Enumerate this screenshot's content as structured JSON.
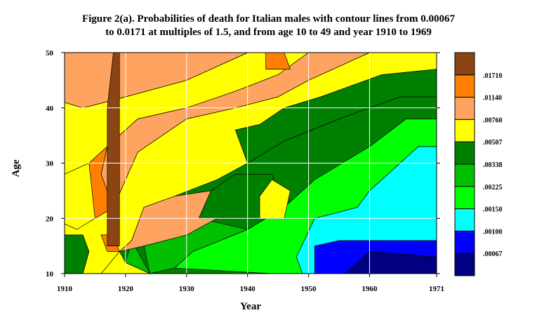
{
  "chart_data": {
    "type": "heatmap",
    "title_lines": [
      "Figure 2(a). Probabilities of death for Italian males with contour lines from 0.00067",
      "to 0.0171 at multiples of 1.5, and from age 10 to 49 and year 1910 to 1969"
    ],
    "xlabel": "Year",
    "ylabel": "Age",
    "xlim": [
      1910,
      1971
    ],
    "ylim": [
      10,
      50
    ],
    "x_ticks": [
      1910,
      1920,
      1930,
      1940,
      1950,
      1960,
      1971
    ],
    "x_tick_labels": [
      "1910",
      "1920",
      "1930",
      "1940",
      "1950",
      "1960",
      "1971"
    ],
    "y_ticks": [
      10,
      20,
      30,
      40,
      50
    ],
    "y_tick_labels": [
      "10",
      "20",
      "30",
      "40",
      "50"
    ],
    "grid": true,
    "legend": {
      "position": "right",
      "labels": [
        ".01710",
        ".01140",
        ".00760",
        ".00507",
        ".00338",
        ".00225",
        ".00150",
        ".00100",
        ".00067"
      ],
      "colors": [
        "#8b4513",
        "#ff8000",
        "#ffa460",
        "#ffff00",
        "#008000",
        "#00c000",
        "#00ff00",
        "#00ffff",
        "#0000ff",
        "#000080"
      ]
    },
    "regions": [
      {
        "level": ".00067",
        "color": "#000080",
        "points": [
          [
            1956,
            10
          ],
          [
            1971,
            10
          ],
          [
            1971,
            13
          ],
          [
            1960,
            14
          ]
        ]
      },
      {
        "level": ".00100",
        "color": "#0000ff",
        "points": [
          [
            1951,
            10
          ],
          [
            1956,
            10
          ],
          [
            1960,
            14
          ],
          [
            1971,
            13
          ],
          [
            1971,
            16
          ],
          [
            1955,
            16
          ],
          [
            1951,
            15
          ]
        ]
      },
      {
        "level": ".00150",
        "color": "#00ffff",
        "points": [
          [
            1949,
            10
          ],
          [
            1951,
            10
          ],
          [
            1951,
            15
          ],
          [
            1955,
            16
          ],
          [
            1971,
            16
          ],
          [
            1971,
            33
          ],
          [
            1968,
            33
          ],
          [
            1960,
            25
          ],
          [
            1958,
            22
          ],
          [
            1951,
            20
          ],
          [
            1948,
            13
          ]
        ]
      },
      {
        "level": ".00225",
        "color": "#00ff00",
        "points": [
          [
            1944,
            10
          ],
          [
            1949,
            10
          ],
          [
            1948,
            13
          ],
          [
            1951,
            20
          ],
          [
            1958,
            22
          ],
          [
            1960,
            25
          ],
          [
            1968,
            33
          ],
          [
            1971,
            33
          ],
          [
            1971,
            38
          ],
          [
            1966,
            38
          ],
          [
            1960,
            33
          ],
          [
            1951,
            27
          ],
          [
            1946,
            22
          ],
          [
            1940,
            18
          ],
          [
            1931,
            14
          ],
          [
            1928,
            11
          ]
        ]
      },
      {
        "level": ".00338",
        "color": "#008000",
        "points": [
          [
            1924,
            10
          ],
          [
            1944,
            10
          ],
          [
            1928,
            11
          ],
          [
            1931,
            14
          ],
          [
            1940,
            18
          ],
          [
            1946,
            22
          ],
          [
            1951,
            27
          ],
          [
            1960,
            33
          ],
          [
            1966,
            38
          ],
          [
            1971,
            38
          ],
          [
            1971,
            42
          ],
          [
            1965,
            42
          ],
          [
            1955,
            38
          ],
          [
            1946,
            34
          ],
          [
            1940,
            30
          ],
          [
            1935,
            27
          ],
          [
            1928,
            24
          ],
          [
            1923,
            22
          ],
          [
            1921,
            16
          ],
          [
            1919,
            14
          ],
          [
            1920,
            12
          ]
        ]
      },
      {
        "level": ".00507",
        "color": "#00c000",
        "points": [
          [
            1920,
            12
          ],
          [
            1922,
            11
          ],
          [
            1924,
            10
          ],
          [
            1921,
            16
          ]
        ]
      },
      {
        "level": ".00507",
        "color": "#008000",
        "points": [
          [
            1910,
            10
          ],
          [
            1913,
            10
          ],
          [
            1914,
            14
          ],
          [
            1913,
            17
          ],
          [
            1910,
            17
          ]
        ]
      },
      {
        "level": ".00507",
        "color": "#00c000",
        "points": [
          [
            1924,
            10
          ],
          [
            1928,
            11
          ],
          [
            1931,
            14
          ],
          [
            1940,
            18
          ],
          [
            1935,
            20
          ],
          [
            1930,
            17
          ],
          [
            1923,
            15
          ]
        ]
      },
      {
        "level": ".00507",
        "color": "#008000",
        "points": [
          [
            1932,
            20
          ],
          [
            1940,
            18
          ],
          [
            1946,
            22
          ],
          [
            1944,
            28
          ],
          [
            1938,
            28
          ],
          [
            1934,
            25
          ]
        ]
      },
      {
        "level": ".00507",
        "color": "#008000",
        "points": [
          [
            1940,
            30
          ],
          [
            1946,
            34
          ],
          [
            1955,
            38
          ],
          [
            1965,
            42
          ],
          [
            1971,
            42
          ],
          [
            1971,
            47
          ],
          [
            1962,
            46
          ],
          [
            1952,
            42
          ],
          [
            1946,
            40
          ],
          [
            1942,
            37
          ],
          [
            1938,
            36
          ]
        ]
      },
      {
        "level": ".00507",
        "color": "#ffff00",
        "points": [
          [
            1910,
            17
          ],
          [
            1913,
            17
          ],
          [
            1914,
            14
          ],
          [
            1913,
            10
          ],
          [
            1916,
            10
          ],
          [
            1919,
            14
          ],
          [
            1921,
            16
          ],
          [
            1923,
            22
          ],
          [
            1928,
            24
          ],
          [
            1935,
            27
          ],
          [
            1940,
            30
          ],
          [
            1938,
            36
          ],
          [
            1942,
            37
          ],
          [
            1946,
            40
          ],
          [
            1952,
            42
          ],
          [
            1962,
            46
          ],
          [
            1971,
            47
          ],
          [
            1971,
            50
          ],
          [
            1960,
            50
          ],
          [
            1950,
            45
          ],
          [
            1945,
            42
          ],
          [
            1938,
            40
          ],
          [
            1930,
            38
          ],
          [
            1922,
            32
          ],
          [
            1918,
            22
          ],
          [
            1915,
            20
          ],
          [
            1912,
            18
          ],
          [
            1910,
            19
          ]
        ]
      },
      {
        "level": ".00507",
        "color": "#ffff00",
        "points": [
          [
            1910,
            28
          ],
          [
            1914,
            30
          ],
          [
            1917,
            33
          ],
          [
            1922,
            38
          ],
          [
            1930,
            40
          ],
          [
            1938,
            43
          ],
          [
            1945,
            46
          ],
          [
            1950,
            50
          ],
          [
            1940,
            50
          ],
          [
            1930,
            45
          ],
          [
            1920,
            42
          ],
          [
            1913,
            40
          ],
          [
            1910,
            41
          ]
        ]
      },
      {
        "level": ".00507",
        "color": "#ffff00",
        "points": [
          [
            1942,
            20
          ],
          [
            1946,
            20
          ],
          [
            1947,
            25
          ],
          [
            1944,
            27
          ],
          [
            1942,
            24
          ]
        ]
      },
      {
        "level": ".00760",
        "color": "#ffa460",
        "points": [
          [
            1918,
            22
          ],
          [
            1922,
            32
          ],
          [
            1930,
            38
          ],
          [
            1938,
            40
          ],
          [
            1945,
            42
          ],
          [
            1950,
            45
          ],
          [
            1960,
            50
          ],
          [
            1950,
            50
          ],
          [
            1945,
            46
          ],
          [
            1938,
            43
          ],
          [
            1930,
            40
          ],
          [
            1922,
            38
          ],
          [
            1917,
            33
          ],
          [
            1916,
            28
          ],
          [
            1917,
            22
          ]
        ]
      },
      {
        "level": ".00760",
        "color": "#ffa460",
        "points": [
          [
            1910,
            41
          ],
          [
            1913,
            40
          ],
          [
            1920,
            42
          ],
          [
            1930,
            45
          ],
          [
            1940,
            50
          ],
          [
            1910,
            50
          ]
        ]
      },
      {
        "level": ".00760",
        "color": "#ffa460",
        "points": [
          [
            1919,
            14
          ],
          [
            1923,
            15
          ],
          [
            1930,
            17
          ],
          [
            1935,
            20
          ],
          [
            1932,
            20
          ],
          [
            1934,
            25
          ],
          [
            1928,
            24
          ],
          [
            1923,
            22
          ],
          [
            1921,
            16
          ]
        ]
      },
      {
        "level": ".01140",
        "color": "#ff8000",
        "points": [
          [
            1915,
            20
          ],
          [
            1918,
            22
          ],
          [
            1916,
            28
          ],
          [
            1917,
            33
          ],
          [
            1914,
            30
          ]
        ]
      },
      {
        "level": ".01140",
        "color": "#ff8000",
        "points": [
          [
            1943,
            47
          ],
          [
            1947,
            47
          ],
          [
            1946,
            50
          ],
          [
            1943,
            50
          ]
        ]
      },
      {
        "level": ".01140",
        "color": "#ff8000",
        "points": [
          [
            1917,
            14
          ],
          [
            1919,
            14
          ],
          [
            1918,
            17
          ],
          [
            1916,
            17
          ]
        ]
      },
      {
        "level": ".01710",
        "color": "#8b4513",
        "points": [
          [
            1917,
            15
          ],
          [
            1919,
            15
          ],
          [
            1919,
            50
          ],
          [
            1918,
            50
          ],
          [
            1917,
            40
          ]
        ]
      }
    ]
  }
}
